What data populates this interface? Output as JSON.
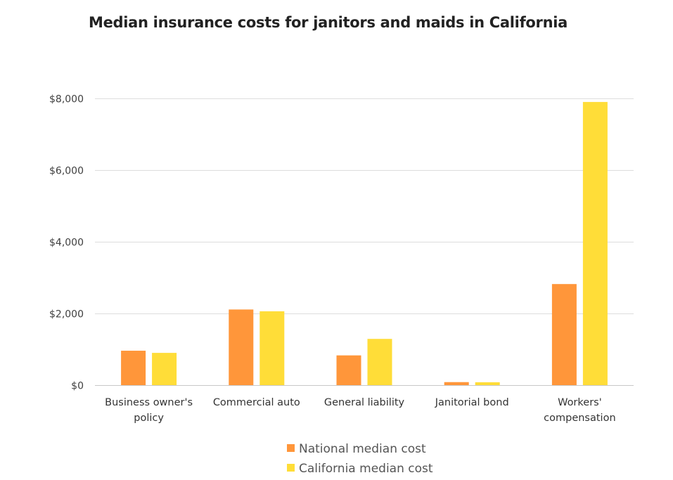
{
  "chart_data": {
    "type": "bar",
    "title": "Median insurance costs for janitors and maids in California",
    "xlabel": "",
    "ylabel": "",
    "categories": [
      [
        "Business owner's",
        "policy"
      ],
      [
        "Commercial auto"
      ],
      [
        "General liability"
      ],
      [
        "Janitorial bond"
      ],
      [
        "Workers'",
        "compensation"
      ]
    ],
    "series": [
      {
        "name": "National median cost",
        "color": "#FF963A",
        "values": [
          960,
          2110,
          830,
          84,
          2820
        ]
      },
      {
        "name": "California median cost",
        "color": "#FFDD38",
        "values": [
          900,
          2060,
          1290,
          80,
          7900
        ]
      }
    ],
    "ylim": [
      0,
      8000
    ],
    "yticks": [
      0,
      2000,
      4000,
      6000,
      8000
    ],
    "ytick_labels": [
      "$0",
      "$2,000",
      "$4,000",
      "$6,000",
      "$8,000"
    ],
    "grid": true,
    "legend_position": "bottom"
  }
}
